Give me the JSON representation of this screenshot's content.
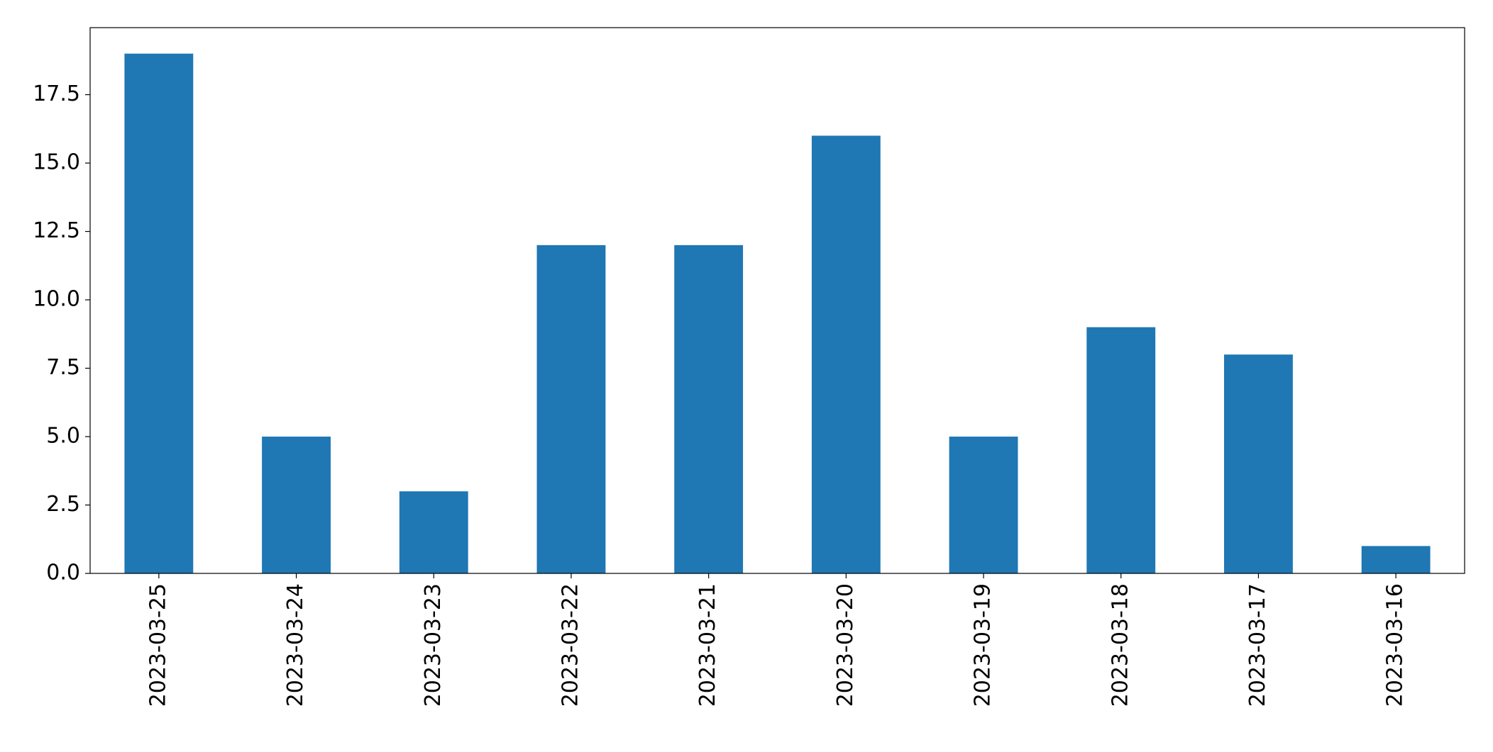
{
  "chart_data": {
    "type": "bar",
    "categories": [
      "2023-03-25",
      "2023-03-24",
      "2023-03-23",
      "2023-03-22",
      "2023-03-21",
      "2023-03-20",
      "2023-03-19",
      "2023-03-18",
      "2023-03-17",
      "2023-03-16"
    ],
    "values": [
      19,
      5,
      3,
      12,
      12,
      16,
      5,
      9,
      8,
      1
    ],
    "color": "#1f77b4",
    "ylim": [
      0,
      19.95
    ],
    "yticks": [
      {
        "value": 0,
        "label": "0.0"
      },
      2.5,
      {
        "value": 5,
        "label": "5.0"
      },
      7.5,
      {
        "value": 10,
        "label": "10.0"
      },
      12.5,
      {
        "value": 15,
        "label": "15.0"
      },
      17.5
    ],
    "grid": false
  }
}
